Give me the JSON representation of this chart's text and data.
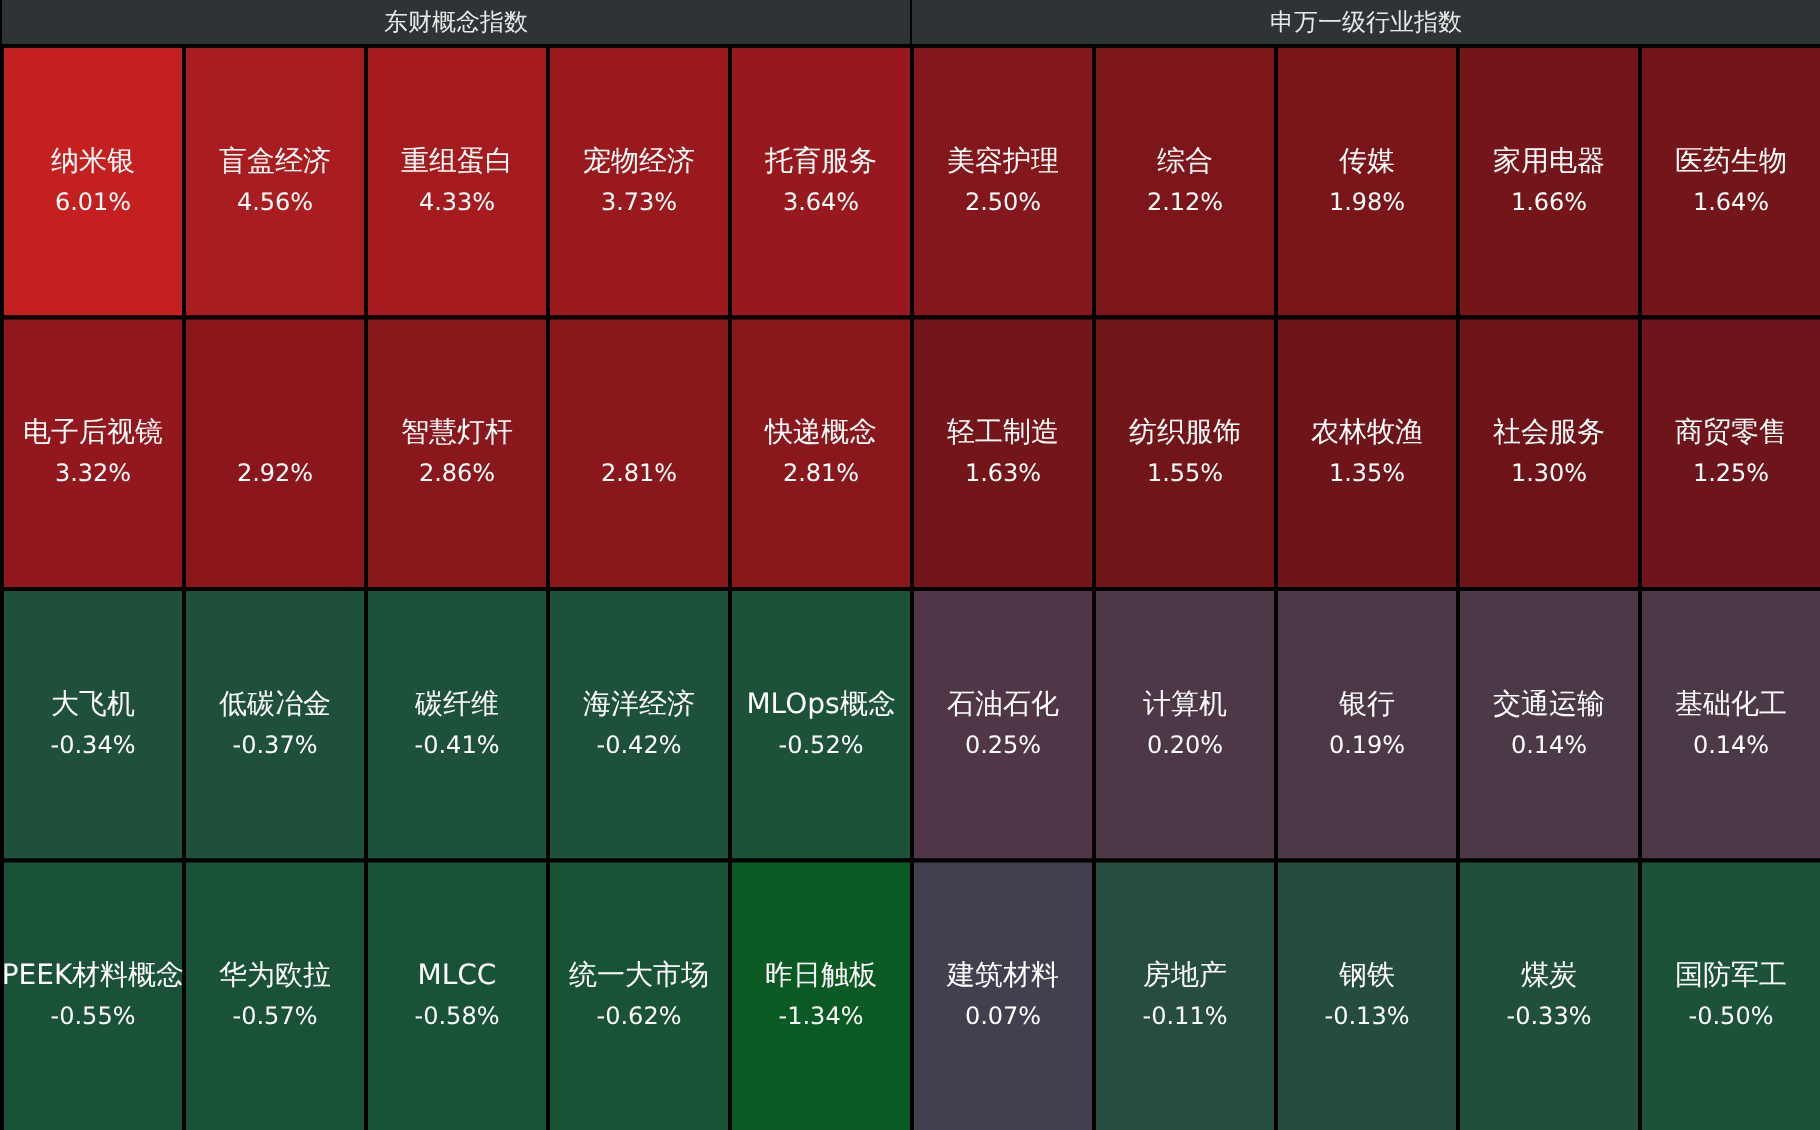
{
  "chart_data": [
    {
      "type": "other",
      "title": "东财概念指数",
      "categories": [
        "纳米银",
        "盲盒经济",
        "重组蛋白",
        "宠物经济",
        "托育服务",
        "电子后视镜",
        null,
        "智慧灯杆",
        null,
        "快递概念",
        "大飞机",
        "低碳冶金",
        "碳纤维",
        "海洋经济",
        "MLOps概念",
        "PEEK材料概念",
        "华为欧拉",
        "MLCC",
        "统一大市场",
        "昨日触板"
      ],
      "values": [
        6.01,
        4.56,
        4.33,
        3.73,
        3.64,
        3.32,
        2.92,
        2.86,
        2.81,
        2.81,
        -0.34,
        -0.37,
        -0.41,
        -0.42,
        -0.52,
        -0.55,
        -0.57,
        -0.58,
        -0.62,
        -1.34
      ],
      "value_labels": [
        "6.01%",
        "4.56%",
        "4.33%",
        "3.73%",
        "3.64%",
        "3.32%",
        "2.92%",
        "2.86%",
        "2.81%",
        "2.81%",
        "-0.34%",
        "-0.37%",
        "-0.41%",
        "-0.42%",
        "-0.52%",
        "-0.55%",
        "-0.57%",
        "-0.58%",
        "-0.62%",
        "-1.34%"
      ]
    },
    {
      "type": "other",
      "title": "申万一级行业指数",
      "categories": [
        "美容护理",
        "综合",
        "传媒",
        "家用电器",
        "医药生物",
        "轻工制造",
        "纺织服饰",
        "农林牧渔",
        "社会服务",
        "商贸零售",
        "石油石化",
        "计算机",
        "银行",
        "交通运输",
        "基础化工",
        "建筑材料",
        "房地产",
        "钢铁",
        "煤炭",
        "国防军工"
      ],
      "values": [
        2.5,
        2.12,
        1.98,
        1.66,
        1.64,
        1.63,
        1.55,
        1.35,
        1.3,
        1.25,
        0.25,
        0.2,
        0.19,
        0.14,
        0.14,
        0.07,
        -0.11,
        -0.13,
        -0.33,
        -0.5
      ],
      "value_labels": [
        "2.50%",
        "2.12%",
        "1.98%",
        "1.66%",
        "1.64%",
        "1.63%",
        "1.55%",
        "1.35%",
        "1.30%",
        "1.25%",
        "0.25%",
        "0.20%",
        "0.19%",
        "0.14%",
        "0.14%",
        "0.07%",
        "-0.11%",
        "-0.13%",
        "-0.33%",
        "-0.50%"
      ]
    }
  ]
}
